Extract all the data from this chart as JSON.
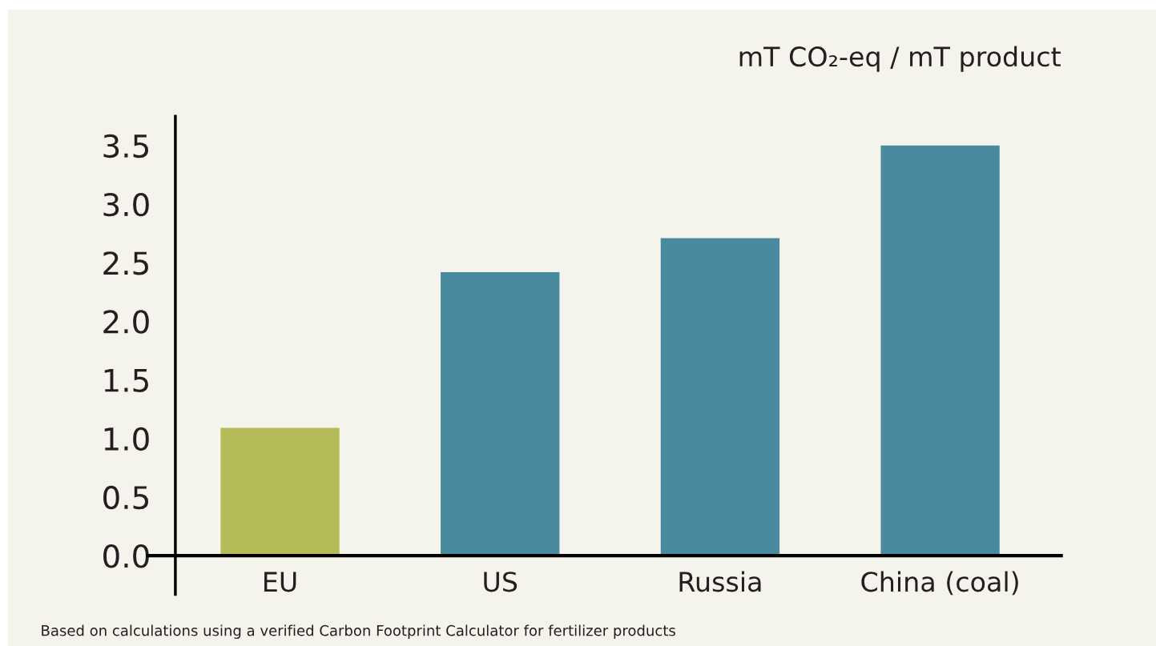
{
  "chart_data": {
    "type": "bar",
    "ylabel": "mT CO₂-eq / mT product",
    "categories": [
      "EU",
      "US",
      "Russia",
      "China (coal)"
    ],
    "values": [
      1.09,
      2.42,
      2.71,
      3.5
    ],
    "colors": [
      "#b6bb5a",
      "#4a8a9e",
      "#4a8a9e",
      "#4a8a9e"
    ],
    "ylim": [
      -0.33,
      3.75
    ],
    "yticks": [
      {
        "value": 0,
        "label": "0.0"
      },
      0.5,
      {
        "value": 1,
        "label": "1.0"
      },
      1.5,
      {
        "value": 2,
        "label": "2.0"
      },
      2.5,
      {
        "value": 3,
        "label": "3.0"
      },
      3.5
    ],
    "grid": false,
    "annotations": [
      "Based on calculations using a verified Carbon Footprint Calculator for fertilizer products"
    ]
  }
}
